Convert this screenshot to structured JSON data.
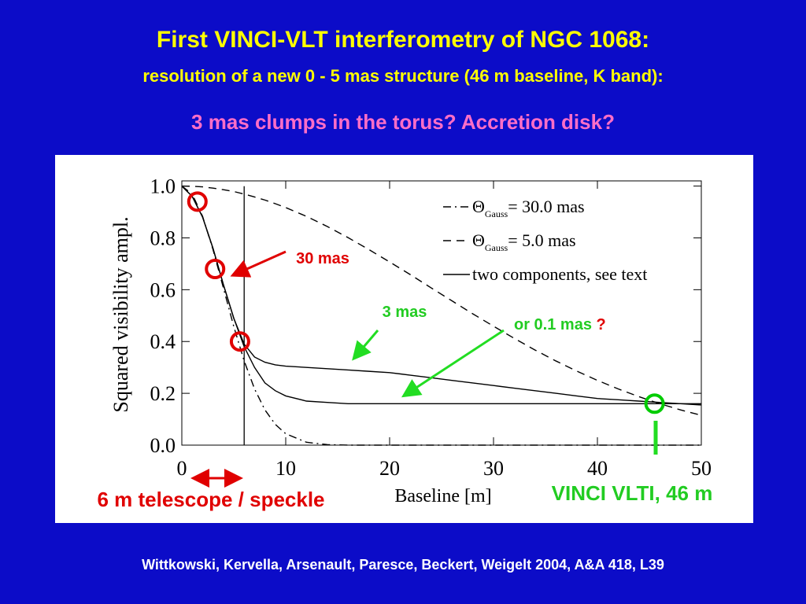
{
  "slide": {
    "title": "First VINCI-VLT interferometry of NGC 1068:",
    "subtitle": "resolution of a new 0 - 5 mas structure (46 m baseline, K band):",
    "question": "3 mas clumps in the torus? Accretion disk?",
    "footer": "Wittkowski, Kervella, Arsenault, Paresce, Beckert, Weigelt 2004, A&A 418, L39"
  },
  "chart_data": {
    "type": "line",
    "xlabel": "Baseline [m]",
    "ylabel": "Squared visibility ampl.",
    "xlim": [
      0,
      50
    ],
    "ylim": [
      0,
      1.02
    ],
    "xticks": [
      0,
      10,
      20,
      30,
      40,
      50
    ],
    "yticks": [
      {
        "value": 0,
        "label": "0.0"
      },
      {
        "value": 0.2,
        "label": "0.2"
      },
      {
        "value": 0.4,
        "label": "0.4"
      },
      {
        "value": 0.6,
        "label": "0.6"
      },
      {
        "value": 0.8,
        "label": "0.8"
      },
      {
        "value": 1,
        "label": "1.0"
      }
    ],
    "x": [
      0,
      1,
      2,
      3,
      4,
      5,
      6,
      7,
      8,
      9,
      10,
      12,
      14,
      16,
      18,
      20,
      22,
      24,
      26,
      28,
      30,
      32,
      34,
      36,
      38,
      40,
      42,
      44,
      46,
      48,
      50
    ],
    "series": [
      {
        "name": [
          "Θ",
          "Gauss",
          "= 30.0 mas"
        ],
        "color": "#000000",
        "dash": "dashdot",
        "values": [
          1,
          0.969,
          0.883,
          0.755,
          0.607,
          0.458,
          0.325,
          0.217,
          0.136,
          0.08,
          0.044,
          0.011,
          0.002,
          0,
          0,
          0,
          0,
          0,
          0,
          0,
          0,
          0,
          0,
          0,
          0,
          0,
          0,
          0,
          0,
          0,
          0
        ]
      },
      {
        "name": [
          "Θ",
          "Gauss",
          "=   5.0 mas"
        ],
        "color": "#000000",
        "dash": "dashed",
        "values": [
          1,
          0.999,
          0.997,
          0.992,
          0.986,
          0.979,
          0.969,
          0.958,
          0.946,
          0.932,
          0.917,
          0.883,
          0.844,
          0.801,
          0.755,
          0.707,
          0.658,
          0.607,
          0.557,
          0.507,
          0.459,
          0.412,
          0.367,
          0.325,
          0.286,
          0.25,
          0.217,
          0.187,
          0.16,
          0.136,
          0.115
        ]
      },
      {
        "name": [
          "two components, see text"
        ],
        "color": "#000000",
        "dash": "solid",
        "values": [
          1,
          0.96,
          0.88,
          0.76,
          0.62,
          0.49,
          0.39,
          0.34,
          0.32,
          0.31,
          0.305,
          0.3,
          0.295,
          0.29,
          0.285,
          0.28,
          0.27,
          0.26,
          0.25,
          0.24,
          0.23,
          0.22,
          0.21,
          0.2,
          0.19,
          0.18,
          0.175,
          0.17,
          0.165,
          0.16,
          0.155
        ]
      },
      {
        "color": "#000000",
        "dash": "solid",
        "values": [
          1,
          0.96,
          0.88,
          0.76,
          0.62,
          0.49,
          0.38,
          0.3,
          0.24,
          0.21,
          0.19,
          0.17,
          0.165,
          0.16,
          0.16,
          0.16,
          0.16,
          0.16,
          0.16,
          0.16,
          0.16,
          0.16,
          0.16,
          0.16,
          0.16,
          0.16,
          0.16,
          0.16,
          0.16,
          0.16,
          0.16
        ]
      }
    ],
    "vline": 6,
    "markers": [
      {
        "x": 1.5,
        "y": 0.94,
        "color": "#e00000"
      },
      {
        "x": 3.2,
        "y": 0.68,
        "color": "#e00000"
      },
      {
        "x": 5.6,
        "y": 0.4,
        "color": "#e00000"
      },
      {
        "x": 45.5,
        "y": 0.16,
        "color": "#00cc00"
      }
    ],
    "annotations": {
      "a30": "30 mas",
      "a3": "3 mas",
      "a01": "or 0.1 mas",
      "q": "?",
      "tel": "6 m telescope / speckle",
      "vinci": "VINCI VLTI, 46 m"
    }
  }
}
